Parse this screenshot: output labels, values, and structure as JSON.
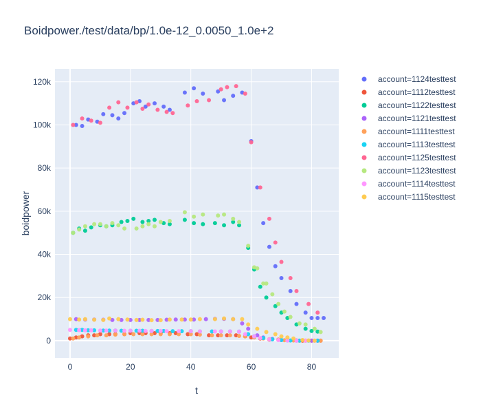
{
  "chart_data": {
    "type": "scatter",
    "title": "Boidpower./test/data/bp/1.0e-12_0.0050_1.0e+2",
    "xlabel": "t",
    "ylabel": "boidpower",
    "xlim": [
      -5,
      89
    ],
    "ylim": [
      -8000,
      126000
    ],
    "x_ticks": [
      0,
      20,
      40,
      60,
      80
    ],
    "x_tick_labels": [
      "0",
      "20",
      "40",
      "60",
      "80"
    ],
    "y_ticks": [
      0,
      20000,
      40000,
      60000,
      80000,
      100000,
      120000
    ],
    "y_tick_labels": [
      "0",
      "20k",
      "40k",
      "60k",
      "80k",
      "100k",
      "120k"
    ],
    "grid": true,
    "legend_position": "right",
    "series": [
      {
        "name": "account=1124testtest",
        "color": "#636efa",
        "x": [
          2,
          4,
          6,
          9,
          11,
          14,
          16,
          18,
          21,
          23,
          25,
          28,
          31,
          33,
          38,
          41,
          44,
          49,
          51,
          54,
          57,
          60,
          62,
          64,
          66,
          68,
          70,
          73,
          75,
          78,
          80,
          82,
          84
        ],
        "y": [
          100000,
          99500,
          102500,
          101500,
          105000,
          104500,
          103000,
          105500,
          110000,
          111000,
          108500,
          110000,
          108500,
          107000,
          115000,
          117000,
          114500,
          115500,
          111500,
          113500,
          115000,
          92500,
          71000,
          54500,
          43500,
          34500,
          29000,
          23000,
          17000,
          13000,
          10500,
          10500,
          10500
        ]
      },
      {
        "name": "account=1112testtest",
        "color": "#EF553B",
        "x": [
          0,
          2,
          4,
          6,
          8,
          10,
          13,
          15,
          18,
          20,
          23,
          25,
          28,
          30,
          33,
          35,
          39,
          42,
          46,
          49,
          52,
          55,
          58,
          60,
          63,
          66,
          69,
          72,
          75,
          77,
          80,
          82,
          83
        ],
        "y": [
          1000,
          1500,
          2000,
          2500,
          2500,
          3000,
          3000,
          3000,
          3000,
          3500,
          3500,
          3500,
          3500,
          3500,
          3500,
          3500,
          3000,
          3000,
          2500,
          2500,
          2500,
          2500,
          2000,
          1500,
          1000,
          500,
          500,
          200,
          100,
          0,
          0,
          0,
          0
        ]
      },
      {
        "name": "account=1122testtest",
        "color": "#00cc96",
        "x": [
          1,
          3,
          5,
          7,
          10,
          12,
          14,
          17,
          19,
          21,
          24,
          26,
          28,
          31,
          33,
          38,
          41,
          44,
          48,
          51,
          54,
          56,
          59,
          61,
          63,
          65,
          68,
          70,
          72,
          75,
          78,
          80,
          82
        ],
        "y": [
          50000,
          52000,
          51000,
          52500,
          53500,
          53000,
          53500,
          55000,
          55500,
          56500,
          55000,
          55500,
          56000,
          54500,
          54000,
          56000,
          54500,
          54000,
          54500,
          53500,
          55000,
          53500,
          43000,
          33000,
          25000,
          20000,
          16000,
          13000,
          10500,
          7500,
          5500,
          4500,
          4200
        ]
      },
      {
        "name": "account=1121testtest",
        "color": "#ab63fa",
        "x": [
          2,
          5,
          8,
          11,
          14,
          17,
          20,
          23,
          26,
          29,
          32,
          35,
          38,
          41,
          45,
          48,
          51,
          54,
          57,
          59,
          62,
          64,
          67,
          70,
          72,
          75,
          78,
          80,
          82
        ],
        "y": [
          10000,
          9800,
          9800,
          9700,
          9600,
          9600,
          9600,
          9600,
          9600,
          9600,
          9700,
          9800,
          9800,
          9800,
          10000,
          10100,
          10100,
          10000,
          8000,
          5500,
          2500,
          1500,
          800,
          300,
          100,
          0,
          0,
          0,
          0
        ]
      },
      {
        "name": "account=1111testtest",
        "color": "#FFA15A",
        "x": [
          1,
          3,
          6,
          9,
          12,
          15,
          18,
          21,
          24,
          27,
          30,
          33,
          36,
          40,
          43,
          47,
          50,
          53,
          56,
          58,
          61,
          64,
          66,
          69,
          71,
          74,
          76,
          78,
          81,
          83
        ],
        "y": [
          1000,
          1500,
          2000,
          2500,
          2500,
          2800,
          3000,
          3000,
          3000,
          3000,
          3000,
          3000,
          3000,
          3000,
          2800,
          2500,
          2500,
          2500,
          2200,
          2000,
          1500,
          1000,
          700,
          400,
          200,
          100,
          0,
          0,
          0,
          0
        ]
      },
      {
        "name": "account=1113testtest",
        "color": "#19d3f3",
        "x": [
          2,
          4,
          6,
          8,
          11,
          13,
          15,
          17,
          20,
          22,
          24,
          27,
          29,
          31,
          34,
          37,
          40,
          43,
          47,
          50,
          53,
          56,
          59,
          61,
          64,
          67,
          70,
          73,
          76,
          79,
          82
        ],
        "y": [
          5000,
          5000,
          4800,
          4800,
          4700,
          4700,
          4700,
          4600,
          4600,
          4600,
          4600,
          4500,
          4500,
          4500,
          4400,
          4400,
          4400,
          4300,
          4300,
          4300,
          4300,
          4200,
          3000,
          2000,
          1200,
          600,
          300,
          100,
          0,
          0,
          0
        ]
      },
      {
        "name": "account=1125testtest",
        "color": "#FF6692",
        "x": [
          1,
          4,
          7,
          10,
          13,
          16,
          19,
          22,
          24,
          26,
          29,
          32,
          34,
          39,
          42,
          46,
          50,
          52,
          55,
          58,
          60,
          63,
          66,
          68,
          70,
          73,
          75,
          79,
          82
        ],
        "y": [
          100000,
          103000,
          102000,
          101000,
          108000,
          110500,
          108000,
          110500,
          107500,
          109500,
          107000,
          106000,
          105500,
          109000,
          111000,
          111500,
          116500,
          117500,
          118000,
          114500,
          92000,
          71000,
          56500,
          45500,
          36500,
          29000,
          23000,
          17000,
          13000
        ]
      },
      {
        "name": "account=1123testtest",
        "color": "#B6E880",
        "x": [
          1,
          3,
          5,
          8,
          10,
          12,
          14,
          16,
          18,
          22,
          24,
          26,
          28,
          30,
          33,
          38,
          41,
          44,
          49,
          51,
          54,
          56,
          59,
          61,
          62,
          64,
          65,
          67,
          69,
          71,
          73,
          76,
          78,
          81,
          83
        ],
        "y": [
          50000,
          51500,
          53000,
          54000,
          54000,
          53000,
          54500,
          53500,
          52000,
          52000,
          53000,
          54000,
          53000,
          55000,
          55500,
          59500,
          57500,
          58500,
          58000,
          58500,
          56500,
          55000,
          44000,
          34000,
          33500,
          26500,
          26500,
          21500,
          17000,
          13500,
          11000,
          8000,
          7500,
          5500,
          4000
        ]
      },
      {
        "name": "account=1114testtest",
        "color": "#FF97FF",
        "x": [
          0,
          3,
          5,
          7,
          10,
          12,
          15,
          18,
          20,
          23,
          25,
          27,
          30,
          32,
          36,
          40,
          43,
          48,
          50,
          53,
          56,
          58,
          61,
          63,
          66,
          69,
          72,
          75,
          78,
          81
        ],
        "y": [
          5000,
          4900,
          4800,
          4800,
          4700,
          4700,
          4700,
          4600,
          4600,
          4600,
          4500,
          4500,
          4500,
          4400,
          4400,
          4400,
          4300,
          4300,
          4300,
          4300,
          4200,
          3000,
          2000,
          1200,
          600,
          300,
          100,
          0,
          0,
          0
        ]
      },
      {
        "name": "account=1115testtest",
        "color": "#FECB52",
        "x": [
          0,
          3,
          5,
          8,
          11,
          13,
          16,
          19,
          22,
          24,
          27,
          30,
          33,
          37,
          40,
          43,
          48,
          51,
          54,
          57,
          59,
          62,
          65,
          68,
          70,
          72,
          74,
          77,
          79,
          81
        ],
        "y": [
          10000,
          9800,
          10000,
          9700,
          9600,
          10300,
          10000,
          9800,
          9600,
          9700,
          9500,
          9500,
          9800,
          9800,
          9800,
          10000,
          10000,
          10300,
          10000,
          10000,
          7500,
          5500,
          4000,
          3000,
          2000,
          1500,
          1000,
          300,
          100,
          0
        ]
      }
    ]
  }
}
